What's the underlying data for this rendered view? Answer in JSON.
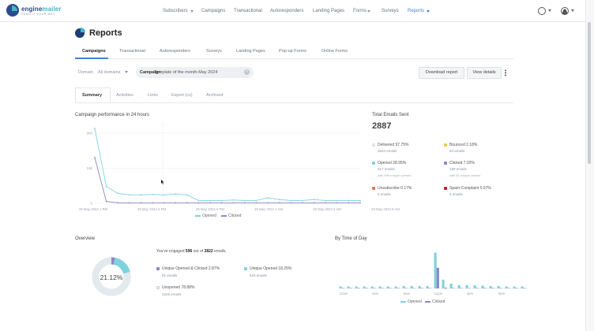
{
  "app": {
    "logo_name_a": "engine",
    "logo_name_b": "mailer",
    "logo_tagline": "Send it your way"
  },
  "topnav": [
    {
      "label": "Subscribers",
      "caret": true
    },
    {
      "label": "Campaigns",
      "caret": false
    },
    {
      "label": "Transactional",
      "caret": false
    },
    {
      "label": "Autoresponders",
      "caret": false
    },
    {
      "label": "Landing Pages",
      "caret": false
    },
    {
      "label": "Forms",
      "caret": true
    },
    {
      "label": "Surveys",
      "caret": false
    },
    {
      "label": "Reports",
      "caret": true,
      "active": true
    }
  ],
  "page": {
    "title": "Reports",
    "title_icon": "pie-chart-icon"
  },
  "maintabs": [
    {
      "label": "Campaigns",
      "active": true
    },
    {
      "label": "Transactional"
    },
    {
      "label": "Autoresponders"
    },
    {
      "label": "Surveys"
    },
    {
      "label": "Landing Pages"
    },
    {
      "label": "Pop-up Forms"
    },
    {
      "label": "Online Forms"
    }
  ],
  "filters": {
    "domain_label": "Domain",
    "domain_value": "All domains",
    "campaign_label": "Campaign",
    "campaign_value": "Template of the month-May 2024"
  },
  "actions": {
    "download": "Download report",
    "details": "View details"
  },
  "subtabs": [
    {
      "label": "Summary",
      "active": true
    },
    {
      "label": "Activities"
    },
    {
      "label": "Links"
    },
    {
      "label": "Export (cs)"
    },
    {
      "label": "Archived"
    }
  ],
  "performance": {
    "title": "Campaign performance in 24 hours",
    "legend": [
      "Opened",
      "Clicked"
    ],
    "colors": {
      "opened": "#7fd3dc",
      "clicked": "#8a86c9"
    }
  },
  "totals": {
    "label": "Total Emails Sent",
    "value": "2887",
    "stats": [
      {
        "name": "Delivered 97.75%",
        "sub": "2822 emails",
        "sub2": "",
        "color": "#dfe3e8"
      },
      {
        "name": "Bounced 2.18%",
        "sub": "63 emails",
        "sub2": "",
        "color": "#f3c84b"
      },
      {
        "name": "Opened 28.95%",
        "sub": "817 emails",
        "sub2": "with 596 unique opened",
        "color": "#7fd3dc"
      },
      {
        "name": "Clicked 7.02%",
        "sub": "198 emails",
        "sub2": "with 81 unique clicked",
        "color": "#8a86c9"
      },
      {
        "name": "Unsubscribe 0.17%",
        "sub": "5 emails",
        "sub2": "",
        "color": "#e8705b"
      },
      {
        "name": "Spam-Complaint 0.07%",
        "sub": "2 emails",
        "sub2": "",
        "color": "#b8242a"
      }
    ]
  },
  "overview": {
    "title": "Overview",
    "engaged_prefix": "You've engaged",
    "engaged_count": "596",
    "engaged_mid": "out of",
    "engaged_total": "2822",
    "engaged_suffix": "emails.",
    "donut_value": "21.12%",
    "items": [
      {
        "name": "Unique Opened & Clicked 2.87%",
        "sub": "81 emails",
        "color": "#8a86c9"
      },
      {
        "name": "Unique Opened 18.25%",
        "sub": "515 emails",
        "color": "#7fd3dc"
      },
      {
        "name": "Unopened 78.88%",
        "sub": "2226 emails",
        "color": "#e8eaed"
      }
    ]
  },
  "chart_data": [
    {
      "type": "line",
      "title": "Campaign performance in 24 hours",
      "x_ticks": [
        "28 May 2024 1 PM",
        "28 May 2024 5 PM",
        "28 May 2024 9 PM",
        "29 May 2024 1 AM",
        "29 May 2024 5 AM",
        "29 May 2024 9 AM"
      ],
      "y_ticks": [
        "0",
        "150",
        "300"
      ],
      "ylim": [
        0,
        330
      ],
      "x": [
        0,
        1,
        2,
        3,
        4,
        5,
        6,
        7,
        8,
        9,
        10,
        11,
        12,
        13,
        14,
        15,
        16,
        17,
        18,
        19,
        20,
        21,
        22,
        23
      ],
      "series": [
        {
          "name": "Opened",
          "values": [
            320,
            72,
            42,
            36,
            36,
            38,
            36,
            40,
            36,
            12,
            12,
            12,
            14,
            12,
            12,
            24,
            16,
            12,
            12,
            16,
            12,
            12,
            12,
            12
          ]
        },
        {
          "name": "Clicked",
          "values": [
            195,
            8,
            2,
            2,
            2,
            2,
            2,
            2,
            2,
            2,
            2,
            2,
            2,
            2,
            2,
            2,
            2,
            2,
            2,
            2,
            2,
            2,
            2,
            2
          ]
        }
      ],
      "grid": true,
      "legend": "bottom"
    },
    {
      "type": "bar",
      "title": "By Time of Day",
      "x_ticks": [
        "12am",
        "4am",
        "8am",
        "12pm",
        "4pm",
        "8pm"
      ],
      "categories": [
        "0",
        "1",
        "2",
        "3",
        "4",
        "5",
        "6",
        "7",
        "8",
        "9",
        "10",
        "11",
        "12",
        "13",
        "14",
        "15",
        "16",
        "17",
        "18",
        "19",
        "20",
        "21",
        "22",
        "23"
      ],
      "series": [
        {
          "name": "Opened",
          "values": [
            5,
            5,
            5,
            5,
            5,
            5,
            5,
            5,
            6,
            6,
            6,
            6,
            90,
            22,
            12,
            8,
            8,
            8,
            7,
            6,
            6,
            5,
            5,
            5
          ]
        },
        {
          "name": "Clicked",
          "values": [
            1,
            1,
            1,
            1,
            1,
            1,
            1,
            1,
            1,
            1,
            1,
            1,
            52,
            2,
            1,
            1,
            1,
            1,
            1,
            1,
            1,
            1,
            1,
            1
          ]
        }
      ],
      "legend": "bottom",
      "colors": {
        "opened": "#7fd3dc",
        "clicked": "#8a86c9"
      }
    },
    {
      "type": "pie",
      "title": "Overview",
      "labels": [
        "Unique Opened & Clicked",
        "Unique Opened",
        "Unopened"
      ],
      "values": [
        2.87,
        18.25,
        78.88
      ],
      "colors": [
        "#8a86c9",
        "#7fd3dc",
        "#e3eaee"
      ]
    }
  ]
}
